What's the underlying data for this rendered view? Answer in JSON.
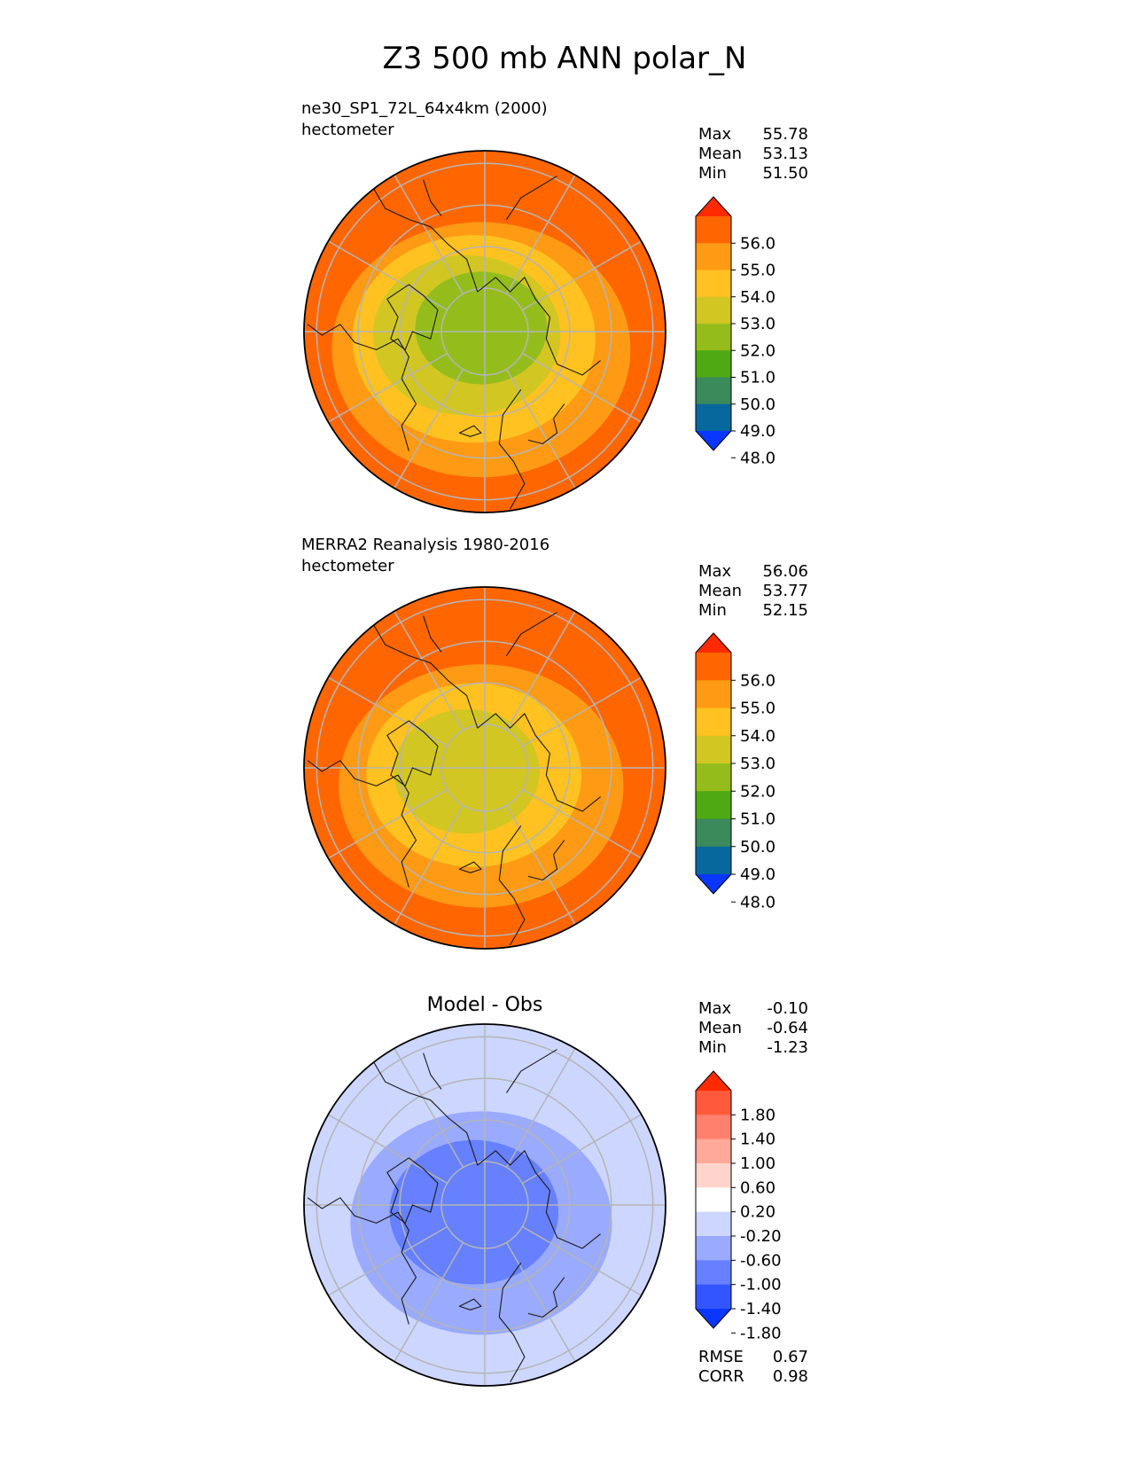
{
  "figure": {
    "title": "Z3 500 mb ANN polar_N"
  },
  "chart_data": [
    {
      "type": "heatmap",
      "projection": "north-polar-stereographic",
      "title": "ne30_SP1_72L_64x4km (2000)",
      "units": "hectometer",
      "stats": [
        {
          "label": "Max",
          "value": "55.78"
        },
        {
          "label": "Mean",
          "value": "53.13"
        },
        {
          "label": "Min",
          "value": "51.50"
        }
      ],
      "colorbar": {
        "ticks": [
          "56.0",
          "55.0",
          "54.0",
          "53.0",
          "52.0",
          "51.0",
          "50.0",
          "49.0",
          "48.0"
        ],
        "colors": [
          "#ff2a00",
          "#ff6600",
          "#ff9a14",
          "#ffc220",
          "#d2c623",
          "#94bd1c",
          "#4fa912",
          "#3a8a5c",
          "#06689c",
          "#0a37ff"
        ],
        "extend": "both"
      },
      "field_bands": [
        "#ff6600",
        "#ff9a14",
        "#ffc220",
        "#d2c623",
        "#94bd1c"
      ]
    },
    {
      "type": "heatmap",
      "projection": "north-polar-stereographic",
      "title": "MERRA2 Reanalysis 1980-2016",
      "units": "hectometer",
      "stats": [
        {
          "label": "Max",
          "value": "56.06"
        },
        {
          "label": "Mean",
          "value": "53.77"
        },
        {
          "label": "Min",
          "value": "52.15"
        }
      ],
      "colorbar": {
        "ticks": [
          "56.0",
          "55.0",
          "54.0",
          "53.0",
          "52.0",
          "51.0",
          "50.0",
          "49.0",
          "48.0"
        ],
        "colors": [
          "#ff2a00",
          "#ff6600",
          "#ff9a14",
          "#ffc220",
          "#d2c623",
          "#94bd1c",
          "#4fa912",
          "#3a8a5c",
          "#06689c",
          "#0a37ff"
        ],
        "extend": "both"
      },
      "field_bands": [
        "#ff6600",
        "#ff9a14",
        "#ffc220",
        "#d2c623"
      ]
    },
    {
      "type": "heatmap",
      "projection": "north-polar-stereographic",
      "title": "Model - Obs",
      "units": "",
      "stats": [
        {
          "label": "Max",
          "value": "-0.10"
        },
        {
          "label": "Mean",
          "value": "-0.64"
        },
        {
          "label": "Min",
          "value": "-1.23"
        }
      ],
      "metrics": [
        {
          "label": "RMSE",
          "value": "0.67"
        },
        {
          "label": "CORR",
          "value": "0.98"
        }
      ],
      "colorbar": {
        "ticks": [
          "1.80",
          "1.40",
          "1.00",
          "0.60",
          "0.20",
          "-0.20",
          "-0.60",
          "-1.00",
          "-1.40",
          "-1.80"
        ],
        "colors": [
          "#ff2a00",
          "#ff5a3c",
          "#ff806c",
          "#ffa99a",
          "#ffd4cc",
          "#ffffff",
          "#ccd6ff",
          "#99aaff",
          "#6680ff",
          "#3355ff",
          "#0a37ff"
        ],
        "extend": "both"
      },
      "field_bands": [
        "#ccd6ff",
        "#99aaff",
        "#6680ff"
      ]
    }
  ]
}
